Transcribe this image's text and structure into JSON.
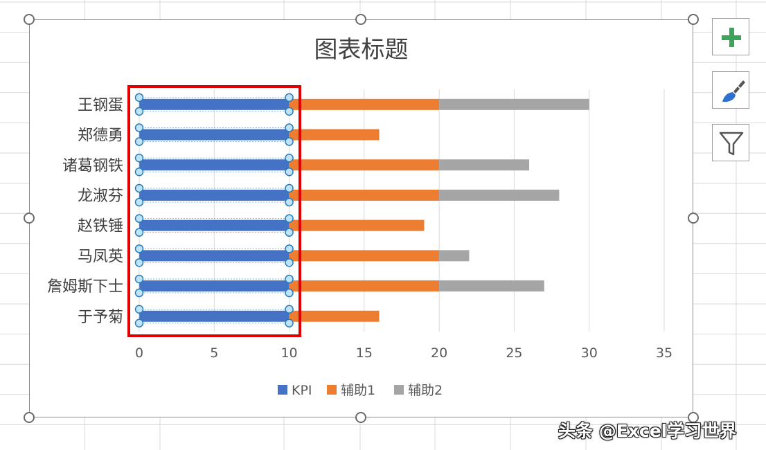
{
  "chart_data": {
    "type": "bar",
    "orientation": "horizontal",
    "stacked": true,
    "title": "图表标题",
    "categories": [
      "王钢蛋",
      "郑德勇",
      "诸葛钢铁",
      "龙淑芬",
      "赵铁锤",
      "马凤英",
      "詹姆斯下士",
      "于予菊"
    ],
    "series": [
      {
        "name": "KPI",
        "color": "#4472C4",
        "values": [
          10,
          10,
          10,
          10,
          10,
          10,
          10,
          10
        ]
      },
      {
        "name": "辅助1",
        "color": "#ED7D31",
        "values": [
          10,
          6,
          10,
          10,
          9,
          10,
          10,
          6
        ]
      },
      {
        "name": "辅助2",
        "color": "#A5A5A5",
        "values": [
          10,
          0,
          6,
          8,
          0,
          2,
          7,
          0
        ]
      }
    ],
    "xlim": [
      0,
      35
    ],
    "x_ticks": [
      "0",
      "5",
      "10",
      "15",
      "20",
      "25",
      "30",
      "35"
    ],
    "grid": true,
    "legend": "bottom"
  },
  "selection": {
    "series": "KPI",
    "highlight_color": "#E00000"
  },
  "toolbar": [
    {
      "icon": "plus-icon",
      "label": "chart-elements"
    },
    {
      "icon": "brush-icon",
      "label": "chart-styles"
    },
    {
      "icon": "filter-icon",
      "label": "chart-filters"
    }
  ],
  "watermark": "头条 @Excel学习世界"
}
